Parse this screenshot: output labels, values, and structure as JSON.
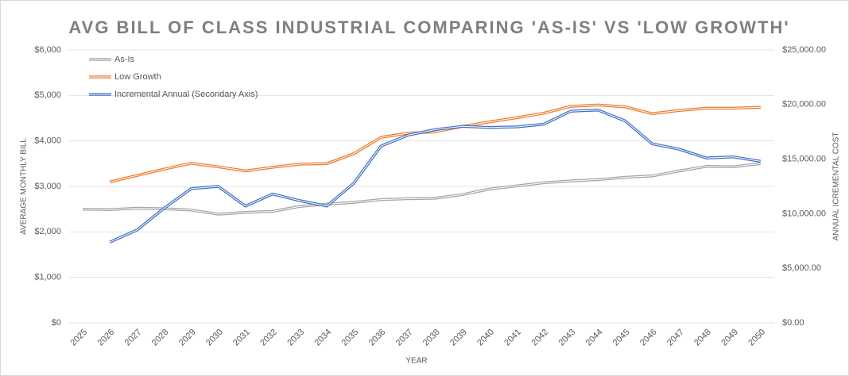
{
  "chart_data": {
    "type": "line",
    "title": "AVG BILL OF CLASS INDUSTRIAL COMPARING 'AS-IS' VS 'LOW GROWTH'",
    "x_label": "YEAR",
    "y_label": "AVERAGE MONTHLY BILL",
    "y2_label": "ANNUAL ICREMENTAL COST",
    "categories": [
      "2025",
      "2026",
      "2027",
      "2028",
      "2029",
      "2030",
      "2031",
      "2032",
      "2033",
      "2034",
      "2035",
      "2036",
      "2037",
      "2038",
      "2039",
      "2040",
      "2041",
      "2042",
      "2043",
      "2044",
      "2045",
      "2046",
      "2047",
      "2048",
      "2049",
      "2050"
    ],
    "series": [
      {
        "name": "As-Is",
        "color": "#a5a5a5",
        "values": [
          2500,
          2490,
          2520,
          2510,
          2480,
          2390,
          2430,
          2450,
          2560,
          2610,
          2650,
          2710,
          2730,
          2740,
          2820,
          2940,
          3010,
          3080,
          3120,
          3150,
          3200,
          3230,
          3340,
          3440,
          3430,
          3500
        ]
      },
      {
        "name": "Low Growth",
        "color": "#ed7d31",
        "values": [
          null,
          3100,
          3240,
          3380,
          3510,
          3430,
          3340,
          3420,
          3490,
          3500,
          3720,
          4080,
          4170,
          4200,
          4320,
          4420,
          4510,
          4610,
          4760,
          4790,
          4750,
          4600,
          4670,
          4720,
          4720,
          4740
        ]
      },
      {
        "name": "Incremental Annual (Secondary Axis)",
        "color": "#4472c4",
        "axis": "y2",
        "values": [
          null,
          7400,
          8500,
          10500,
          12300,
          12500,
          10700,
          11800,
          11200,
          10700,
          12800,
          16200,
          17200,
          17700,
          18000,
          17900,
          17950,
          18200,
          19400,
          19500,
          18500,
          16400,
          15900,
          15100,
          15200,
          14800
        ]
      }
    ],
    "ylim": [
      0,
      6000
    ],
    "yticks": [
      {
        "value": 0,
        "label": "$0"
      },
      {
        "value": 1000,
        "label": "$1,000"
      },
      {
        "value": 2000,
        "label": "$2,000"
      },
      {
        "value": 3000,
        "label": "$3,000"
      },
      {
        "value": 4000,
        "label": "$4,000"
      },
      {
        "value": 5000,
        "label": "$5,000"
      },
      {
        "value": 6000,
        "label": "$6,000"
      }
    ],
    "y2lim": [
      0,
      25000
    ],
    "y2ticks": [
      {
        "value": 0,
        "label": "$0.00"
      },
      {
        "value": 5000,
        "label": "$5,000.00"
      },
      {
        "value": 10000,
        "label": "$10,000.00"
      },
      {
        "value": 15000,
        "label": "$15,000.00"
      },
      {
        "value": 20000,
        "label": "$20,000.00"
      },
      {
        "value": 25000,
        "label": "$25,000.00"
      }
    ],
    "grid": true,
    "legend": "top-left"
  }
}
